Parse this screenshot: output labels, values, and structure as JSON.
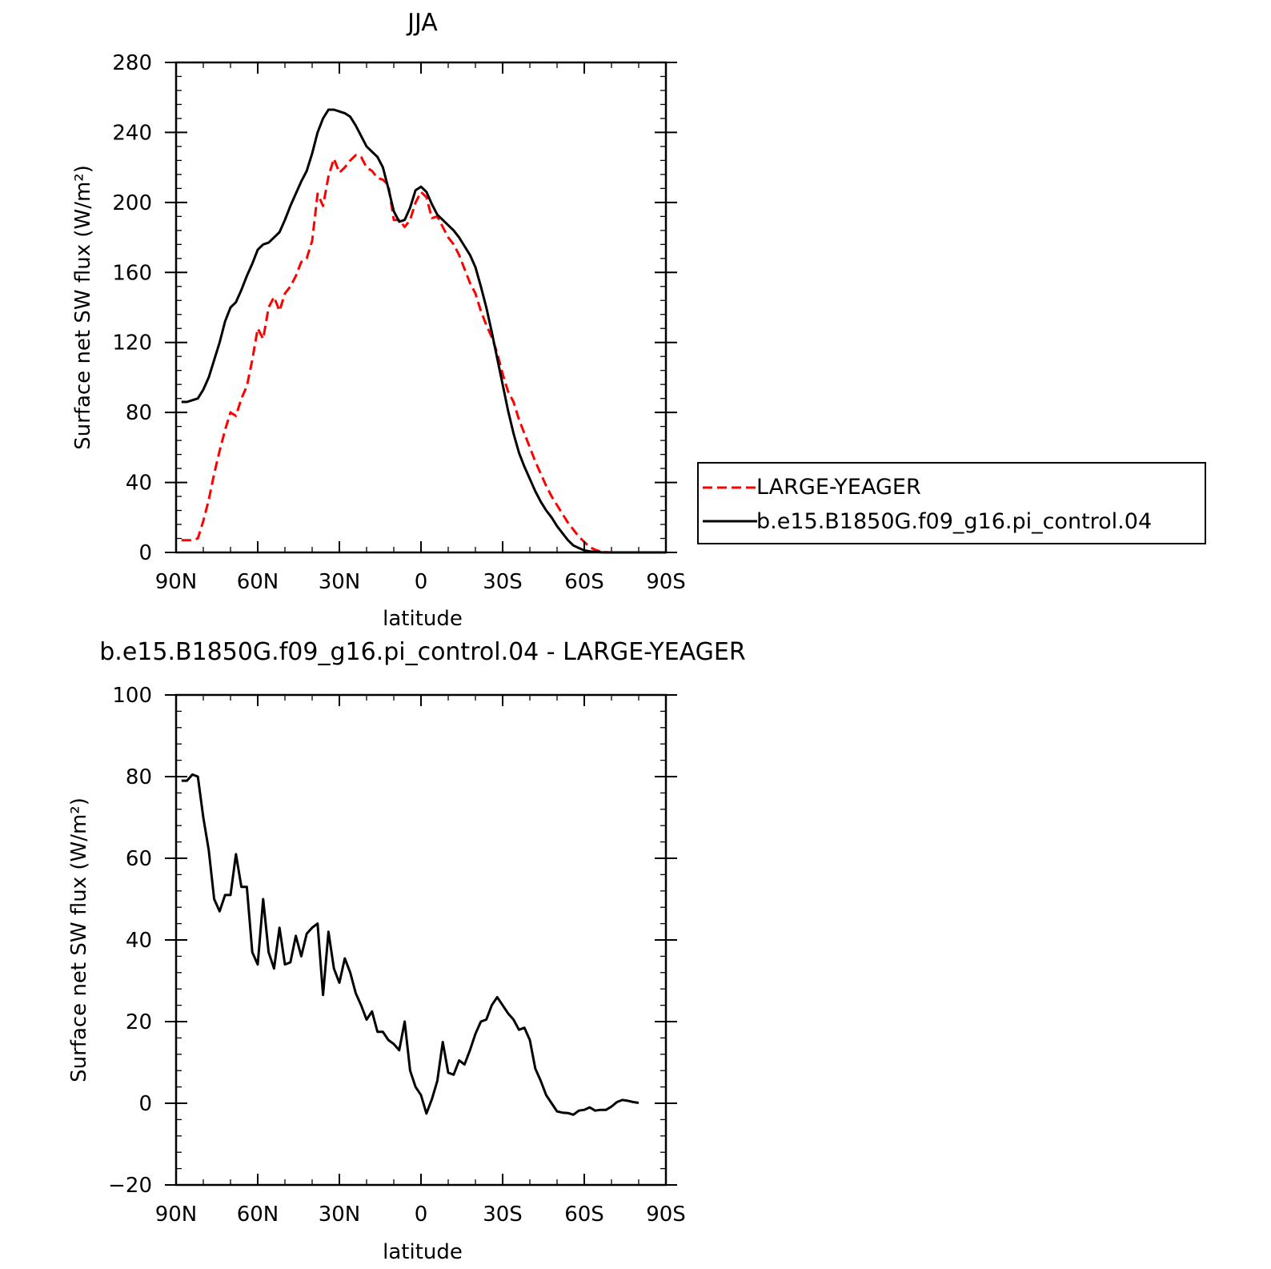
{
  "chart_data": [
    {
      "type": "line",
      "title": "JJA",
      "xlabel": "latitude",
      "ylabel": "Surface net SW flux (W/m²)",
      "xlim": [
        90,
        -90
      ],
      "ylim": [
        0,
        280
      ],
      "xticks": [
        90,
        60,
        30,
        0,
        -30,
        -60,
        -90
      ],
      "xtick_labels": [
        "90N",
        "60N",
        "30N",
        "0",
        "30S",
        "60S",
        "90S"
      ],
      "yticks": [
        0,
        40,
        80,
        120,
        160,
        200,
        240,
        280
      ],
      "ytick_labels": [
        "0",
        "40",
        "80",
        "120",
        "160",
        "200",
        "240",
        "280"
      ],
      "legend": "outside-right",
      "series": [
        {
          "name": "LARGE-YEAGER",
          "color": "#ff0000",
          "dash": "dashed",
          "x": [
            88,
            86,
            84,
            82,
            80,
            78,
            76,
            74,
            72,
            70,
            68,
            66,
            64,
            62,
            60,
            58,
            56,
            54,
            52,
            50,
            48,
            46,
            44,
            42,
            40,
            38,
            36,
            34,
            32,
            30,
            28,
            26,
            24,
            22,
            20,
            18,
            16,
            14,
            12,
            10,
            8,
            6,
            4,
            2,
            0,
            -2,
            -4,
            -6,
            -8,
            -10,
            -12,
            -14,
            -16,
            -18,
            -20,
            -22,
            -24,
            -26,
            -28,
            -30,
            -32,
            -34,
            -36,
            -38,
            -40,
            -42,
            -44,
            -46,
            -48,
            -50,
            -52,
            -54,
            -56,
            -58,
            -60,
            -62,
            -64,
            -66,
            -68,
            -70,
            -72,
            -74,
            -76,
            -78,
            -80,
            -82,
            -84,
            -86,
            -88,
            -90
          ],
          "values": [
            7,
            7,
            7,
            8,
            18,
            30,
            45,
            58,
            70,
            80,
            78,
            88,
            95,
            110,
            128,
            122,
            140,
            146,
            138,
            148,
            152,
            158,
            166,
            168,
            178,
            205,
            198,
            215,
            225,
            217,
            220,
            224,
            227,
            226,
            220,
            218,
            214,
            213,
            210,
            190,
            190,
            186,
            190,
            200,
            206,
            203,
            191,
            192,
            186,
            180,
            176,
            170,
            162,
            154,
            148,
            138,
            130,
            123,
            114,
            102,
            92,
            86,
            76,
            68,
            60,
            52,
            45,
            38,
            32,
            27,
            22,
            17,
            13,
            9,
            6,
            3,
            1.5,
            0.5,
            0.2,
            0,
            0,
            0,
            0,
            0,
            0,
            0,
            0,
            0,
            0,
            0
          ]
        },
        {
          "name": "b.e15.B1850G.f09_g16.pi_control.04",
          "color": "#000000",
          "dash": "solid",
          "x": [
            88,
            86,
            84,
            82,
            80,
            78,
            76,
            74,
            72,
            70,
            68,
            66,
            64,
            62,
            60,
            58,
            56,
            54,
            52,
            50,
            48,
            46,
            44,
            42,
            40,
            38,
            36,
            34,
            32,
            30,
            28,
            26,
            24,
            22,
            20,
            18,
            16,
            14,
            12,
            10,
            8,
            6,
            4,
            2,
            0,
            -2,
            -4,
            -6,
            -8,
            -10,
            -12,
            -14,
            -16,
            -18,
            -20,
            -22,
            -24,
            -26,
            -28,
            -30,
            -32,
            -34,
            -36,
            -38,
            -40,
            -42,
            -44,
            -46,
            -48,
            -50,
            -52,
            -54,
            -56,
            -58,
            -60,
            -62,
            -64,
            -66,
            -68,
            -70,
            -72,
            -74,
            -76,
            -78,
            -80,
            -82,
            -84,
            -86,
            -88,
            -90
          ],
          "values": [
            86,
            86,
            87,
            88,
            93,
            100,
            110,
            120,
            132,
            140,
            143,
            150,
            158,
            165,
            173,
            176,
            177,
            180,
            183,
            190,
            198,
            205,
            212,
            218,
            228,
            240,
            248,
            253,
            253,
            252,
            251,
            249,
            244,
            238,
            232,
            229,
            226,
            220,
            208,
            195,
            189,
            190,
            197,
            207,
            209,
            206,
            199,
            193,
            190,
            187,
            184,
            180,
            175,
            170,
            163,
            152,
            140,
            126,
            111,
            96,
            81,
            68,
            57,
            49,
            42,
            35,
            29,
            24,
            20,
            15,
            11,
            7,
            4,
            2.5,
            1.2,
            0.6,
            0.3,
            0.1,
            0,
            0,
            0,
            0,
            0,
            0,
            0,
            0,
            0,
            0,
            0,
            0
          ]
        }
      ]
    },
    {
      "type": "line",
      "title": "b.e15.B1850G.f09_g16.pi_control.04 - LARGE-YEAGER",
      "xlabel": "latitude",
      "ylabel": "Surface net SW flux (W/m²)",
      "xlim": [
        90,
        -90
      ],
      "ylim": [
        -20,
        100
      ],
      "xticks": [
        90,
        60,
        30,
        0,
        -30,
        -60,
        -90
      ],
      "xtick_labels": [
        "90N",
        "60N",
        "30N",
        "0",
        "30S",
        "60S",
        "90S"
      ],
      "yticks": [
        -20,
        0,
        20,
        40,
        60,
        80,
        100
      ],
      "ytick_labels": [
        "−20",
        "0",
        "20",
        "40",
        "60",
        "80",
        "100"
      ],
      "series": [
        {
          "color": "#000000",
          "dash": "solid",
          "x": [
            88,
            86,
            84,
            82,
            80,
            78,
            76,
            74,
            72,
            70,
            68,
            66,
            64,
            62,
            60,
            58,
            56,
            54,
            52,
            50,
            48,
            46,
            44,
            42,
            40,
            38,
            36,
            34,
            32,
            30,
            28,
            26,
            24,
            22,
            20,
            18,
            16,
            14,
            12,
            10,
            8,
            6,
            4,
            2,
            0,
            -2,
            -4,
            -6,
            -8,
            -10,
            -12,
            -14,
            -16,
            -18,
            -20,
            -22,
            -24,
            -26,
            -28,
            -30,
            -32,
            -34,
            -36,
            -38,
            -40,
            -42,
            -44,
            -46,
            -48,
            -50,
            -52,
            -54,
            -56,
            -58,
            -60,
            -62,
            -64,
            -66,
            -68,
            -70,
            -72,
            -74,
            -76,
            -78,
            -80
          ],
          "values": [
            79,
            79,
            80.5,
            80,
            70,
            62,
            50,
            47,
            51,
            51,
            61,
            53,
            53,
            37,
            34,
            50,
            37,
            33,
            43,
            34,
            34.5,
            41,
            36,
            41.5,
            43,
            44,
            26.5,
            42,
            33,
            29.5,
            35.5,
            32,
            27,
            24,
            20.5,
            22.5,
            17.5,
            17.5,
            15.5,
            14.5,
            13,
            20,
            8,
            4,
            2,
            -2.5,
            1,
            5.5,
            15,
            7.5,
            7,
            10.5,
            9.5,
            13,
            17,
            20,
            20.5,
            24,
            26,
            24,
            22,
            20.5,
            18,
            18.5,
            15.5,
            8.5,
            5.5,
            2,
            0,
            -2,
            -2.3,
            -2.4,
            -2.8,
            -1.8,
            -1.6,
            -1.0,
            -1.8,
            -1.6,
            -1.6,
            -0.8,
            0.3,
            0.8,
            0.6,
            0.3,
            0.1
          ]
        }
      ]
    }
  ]
}
